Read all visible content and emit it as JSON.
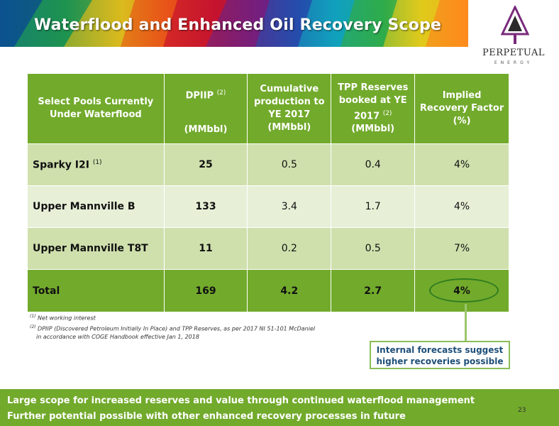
{
  "header": {
    "title": "Waterflood and Enhanced Oil Recovery Scope"
  },
  "logo": {
    "name": "PERPETUAL",
    "sub": "ENERGY"
  },
  "table": {
    "headers": {
      "pools": "Select Pools Currently Under Waterflood",
      "dpiip": "DPIIP",
      "dpiip_sup": "(2)",
      "dpiip_unit": "(MMbbl)",
      "cumulative": "Cumulative production to YE 2017 (MMbbl)",
      "tpp_pre": "TPP Reserves booked at YE 2017",
      "tpp_sup": "(2)",
      "tpp_unit": "(MMbbl)",
      "recovery": "Implied Recovery Factor (%)"
    },
    "rows": [
      {
        "name": "Sparky I2I",
        "sup": "(1)",
        "dpiip": "25",
        "cumulative": "0.5",
        "tpp": "0.4",
        "recovery": "4%"
      },
      {
        "name": "Upper Mannville B",
        "sup": "",
        "dpiip": "133",
        "cumulative": "3.4",
        "tpp": "1.7",
        "recovery": "4%"
      },
      {
        "name": "Upper Mannville T8T",
        "sup": "",
        "dpiip": "11",
        "cumulative": "0.2",
        "tpp": "0.5",
        "recovery": "7%"
      }
    ],
    "total": {
      "name": "Total",
      "dpiip": "169",
      "cumulative": "4.2",
      "tpp": "2.7",
      "recovery": "4%"
    }
  },
  "footnotes": {
    "n1_mark": "(1)",
    "n1": "Net working interest",
    "n2_mark": "(2)",
    "n2_line1": "DPIIP (Discovered Petroleum Initially In Place) and TPP Reserves, as per 2017 NI 51-101 McDaniel",
    "n2_line2": "in accordance with COGE Handbook effective Jan 1, 2018"
  },
  "callout": {
    "line1": "Internal forecasts suggest",
    "line2": "higher recoveries possible"
  },
  "bottom": {
    "line1": "Large scope for increased reserves and value through continued waterflood management",
    "line2": "Further potential possible with other enhanced recovery processes in future"
  },
  "page_number": "23",
  "colors": {
    "table_header": "#72aa2c",
    "row_dark": "#cfe0ad",
    "row_light": "#e7f0d7",
    "callout_text": "#1e4f78"
  }
}
